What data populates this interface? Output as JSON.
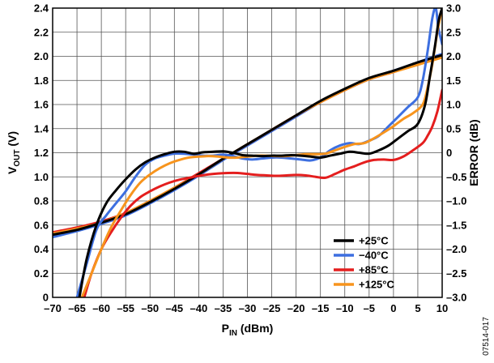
{
  "chart_data": {
    "type": "line",
    "xlabel": {
      "main": "P",
      "sub": "IN",
      "unit": " (dBm)"
    },
    "ylabel_left": {
      "main": "V",
      "sub": "OUT",
      "unit": " (V)"
    },
    "ylabel_right": "ERROR (dB)",
    "xlim": [
      -70,
      10
    ],
    "ylim_left": [
      0,
      2.4
    ],
    "ylim_right": [
      -3.0,
      3.0
    ],
    "x_ticks": [
      "–70",
      "–65",
      "–60",
      "–55",
      "–50",
      "–45",
      "–40",
      "–35",
      "–30",
      "–25",
      "–20",
      "–15",
      "–10",
      "–5",
      "0",
      "5",
      "10"
    ],
    "y_left_ticks": [
      "0",
      "0.2",
      "0.4",
      "0.6",
      "0.8",
      "1.0",
      "1.2",
      "1.4",
      "1.6",
      "1.8",
      "2.0",
      "2.2",
      "2.4"
    ],
    "y_right_ticks": [
      "–3.0",
      "–2.5",
      "–2.0",
      "–1.5",
      "–1.0",
      "–0.5",
      "0",
      "0.5",
      "1.0",
      "1.5",
      "2.0",
      "2.5",
      "3.0"
    ],
    "grid": true,
    "legend_position": "bottom-right",
    "figure_code": "07514-017",
    "series": [
      {
        "name": "+25°C",
        "color": "#000000",
        "kind": "vout",
        "x": [
          -70,
          -65,
          -60,
          -55,
          -50,
          -45,
          -40,
          -35,
          -30,
          -25,
          -20,
          -15,
          -10,
          -5,
          0,
          5,
          10
        ],
        "y": [
          0.52,
          0.56,
          0.62,
          0.69,
          0.79,
          0.9,
          1.02,
          1.15,
          1.27,
          1.39,
          1.51,
          1.63,
          1.73,
          1.82,
          1.88,
          1.95,
          2.01
        ]
      },
      {
        "name": "−40°C",
        "color": "#3d6fe0",
        "kind": "vout",
        "x": [
          -70,
          -65,
          -60,
          -55,
          -50,
          -45,
          -40,
          -35,
          -30,
          -25,
          -20,
          -15,
          -10,
          -5,
          0,
          5,
          10
        ],
        "y": [
          0.5,
          0.55,
          0.61,
          0.68,
          0.78,
          0.89,
          1.01,
          1.14,
          1.26,
          1.38,
          1.5,
          1.62,
          1.72,
          1.81,
          1.88,
          1.95,
          2.02
        ]
      },
      {
        "name": "+85°C",
        "color": "#e41e1e",
        "kind": "vout",
        "x": [
          -70,
          -65,
          -60,
          -55,
          -50,
          -45,
          -40,
          -35,
          -30,
          -25,
          -20,
          -15,
          -10,
          -5,
          0,
          5,
          10
        ],
        "y": [
          0.54,
          0.58,
          0.63,
          0.7,
          0.8,
          0.91,
          1.03,
          1.15,
          1.27,
          1.39,
          1.51,
          1.62,
          1.72,
          1.81,
          1.87,
          1.94,
          2.0
        ]
      },
      {
        "name": "+125°C",
        "color": "#f7941d",
        "kind": "vout",
        "x": [
          -70,
          -65,
          -60,
          -55,
          -50,
          -45,
          -40,
          -35,
          -30,
          -25,
          -20,
          -15,
          -10,
          -5,
          0,
          5,
          10
        ],
        "y": [
          0.53,
          0.57,
          0.62,
          0.7,
          0.8,
          0.91,
          1.02,
          1.15,
          1.27,
          1.39,
          1.51,
          1.62,
          1.72,
          1.81,
          1.87,
          1.93,
          1.99
        ]
      },
      {
        "name": "+25°C",
        "color": "#000000",
        "kind": "error",
        "x": [
          -64.5,
          -63,
          -61,
          -59,
          -57,
          -55,
          -53,
          -51,
          -49,
          -47,
          -45,
          -43,
          -41,
          -39,
          -37,
          -35,
          -33,
          -31,
          -29,
          -27,
          -25,
          -23,
          -21,
          -19,
          -17,
          -15,
          -13,
          -11,
          -9,
          -7,
          -5,
          -3,
          -1,
          1,
          3,
          5,
          6.5,
          7.5,
          8.5,
          9.3,
          10
        ],
        "y": [
          -3.0,
          -2.2,
          -1.5,
          -1.05,
          -0.78,
          -0.55,
          -0.35,
          -0.2,
          -0.1,
          -0.03,
          0.02,
          0.02,
          -0.02,
          0.01,
          0.02,
          0.03,
          0.0,
          -0.05,
          -0.06,
          -0.07,
          -0.06,
          -0.06,
          -0.05,
          -0.06,
          -0.08,
          -0.1,
          -0.06,
          -0.02,
          0.02,
          0.0,
          -0.02,
          0.05,
          0.15,
          0.3,
          0.45,
          0.6,
          1.0,
          1.6,
          2.2,
          2.75,
          3.0
        ]
      },
      {
        "name": "−40°C",
        "color": "#3d6fe0",
        "kind": "error",
        "x": [
          -65,
          -63,
          -61,
          -59,
          -57,
          -55,
          -53,
          -51,
          -49,
          -47,
          -45,
          -43,
          -41,
          -39,
          -37,
          -35,
          -33,
          -31,
          -29,
          -27,
          -25,
          -23,
          -21,
          -19,
          -17,
          -15,
          -13,
          -11,
          -9,
          -7,
          -5,
          -3,
          -1,
          1,
          3,
          5,
          6,
          7,
          8,
          8.7,
          9.2,
          10
        ],
        "y": [
          -3.0,
          -2.3,
          -1.6,
          -1.3,
          -1.05,
          -0.8,
          -0.5,
          -0.25,
          -0.12,
          -0.06,
          -0.02,
          -0.02,
          -0.04,
          -0.06,
          -0.06,
          -0.04,
          -0.07,
          -0.12,
          -0.14,
          -0.12,
          -0.1,
          -0.1,
          -0.12,
          -0.14,
          -0.16,
          -0.1,
          0.05,
          0.15,
          0.2,
          0.18,
          0.25,
          0.35,
          0.55,
          0.75,
          0.95,
          1.15,
          1.5,
          2.1,
          2.8,
          3.0,
          2.6,
          2.25
        ]
      },
      {
        "name": "+85°C",
        "color": "#e41e1e",
        "kind": "error",
        "x": [
          -63.5,
          -62,
          -60,
          -58,
          -56,
          -54,
          -52,
          -50,
          -48,
          -46,
          -44,
          -42,
          -40,
          -38,
          -36,
          -34,
          -32,
          -30,
          -28,
          -26,
          -24,
          -22,
          -20,
          -18,
          -16,
          -14,
          -12,
          -10,
          -8,
          -6,
          -4,
          -2,
          0,
          2,
          4,
          6,
          7,
          8,
          9,
          10
        ],
        "y": [
          -3.0,
          -2.5,
          -2.0,
          -1.65,
          -1.35,
          -1.1,
          -0.92,
          -0.8,
          -0.7,
          -0.62,
          -0.56,
          -0.52,
          -0.48,
          -0.45,
          -0.43,
          -0.42,
          -0.42,
          -0.44,
          -0.46,
          -0.47,
          -0.48,
          -0.47,
          -0.46,
          -0.47,
          -0.5,
          -0.52,
          -0.44,
          -0.35,
          -0.28,
          -0.2,
          -0.15,
          -0.14,
          -0.15,
          -0.08,
          0.05,
          0.2,
          0.35,
          0.55,
          0.85,
          1.3
        ]
      },
      {
        "name": "+125°C",
        "color": "#f7941d",
        "kind": "error",
        "x": [
          -64,
          -62,
          -60,
          -58,
          -56,
          -54,
          -52,
          -50,
          -48,
          -46,
          -44,
          -42,
          -40,
          -38,
          -36,
          -34,
          -32,
          -30,
          -28,
          -26,
          -24,
          -22,
          -20,
          -18,
          -16,
          -14,
          -12,
          -10,
          -8,
          -6,
          -4,
          -2,
          0,
          2,
          4,
          6,
          7,
          8,
          9,
          10
        ],
        "y": [
          -3.0,
          -2.5,
          -2.0,
          -1.55,
          -1.2,
          -0.88,
          -0.62,
          -0.45,
          -0.32,
          -0.22,
          -0.15,
          -0.1,
          -0.08,
          -0.07,
          -0.08,
          -0.1,
          -0.1,
          -0.08,
          -0.06,
          -0.06,
          -0.07,
          -0.07,
          -0.05,
          -0.03,
          -0.03,
          -0.02,
          0.05,
          0.12,
          0.18,
          0.2,
          0.3,
          0.42,
          0.55,
          0.7,
          0.82,
          1.0,
          1.35,
          1.85,
          2.5,
          3.0
        ]
      }
    ]
  }
}
